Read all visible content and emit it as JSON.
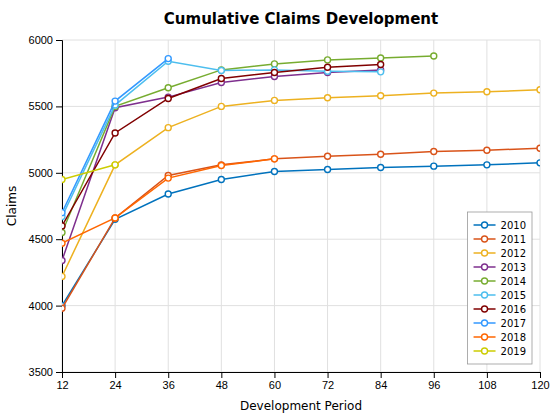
{
  "chart_data": {
    "type": "line",
    "title": "Cumulative Claims Development",
    "xlabel": "Development Period",
    "ylabel": "Claims",
    "x": [
      12,
      24,
      36,
      48,
      60,
      72,
      84,
      96,
      108,
      120
    ],
    "xlim": [
      12,
      120
    ],
    "ylim": [
      3500,
      6000
    ],
    "xticks": [
      12,
      24,
      36,
      48,
      60,
      72,
      84,
      96,
      108,
      120
    ],
    "yticks": [
      3500,
      4000,
      4500,
      5000,
      5500,
      6000
    ],
    "grid": true,
    "legend": "lower right",
    "marker": "circle",
    "series": [
      {
        "name": "2010",
        "color": "#0072BD",
        "values": [
          4000,
          4650,
          4840,
          4950,
          5010,
          5025,
          5040,
          5050,
          5060,
          5075
        ]
      },
      {
        "name": "2011",
        "color": "#D95319",
        "values": [
          3980,
          4660,
          4980,
          5060,
          5105,
          5125,
          5140,
          5160,
          5170,
          5185
        ]
      },
      {
        "name": "2012",
        "color": "#EDB120",
        "values": [
          4220,
          5060,
          5340,
          5500,
          5545,
          5565,
          5580,
          5600,
          5610,
          5625
        ]
      },
      {
        "name": "2013",
        "color": "#7E2F8E",
        "values": [
          4340,
          5490,
          5570,
          5680,
          5725,
          5755,
          5775,
          null,
          null,
          null
        ]
      },
      {
        "name": "2014",
        "color": "#77AC30",
        "values": [
          4550,
          5500,
          5640,
          5775,
          5820,
          5850,
          5865,
          5880,
          null,
          null
        ]
      },
      {
        "name": "2015",
        "color": "#4DBEEE",
        "values": [
          4670,
          5510,
          5840,
          5770,
          5775,
          5765,
          5760,
          null,
          null,
          null
        ]
      },
      {
        "name": "2016",
        "color": "#800000",
        "values": [
          4600,
          5300,
          5560,
          5710,
          5755,
          5795,
          5815,
          null,
          null,
          null
        ]
      },
      {
        "name": "2017",
        "color": "#3399FF",
        "values": [
          4700,
          5540,
          5860,
          null,
          null,
          null,
          null,
          null,
          null,
          null
        ]
      },
      {
        "name": "2018",
        "color": "#FF6600",
        "values": [
          4470,
          4660,
          4960,
          5055,
          5105,
          null,
          null,
          null,
          null,
          null
        ]
      },
      {
        "name": "2019",
        "color": "#CCCC00",
        "values": [
          4950,
          5060,
          null,
          null,
          null,
          null,
          null,
          null,
          null,
          null
        ]
      }
    ]
  }
}
